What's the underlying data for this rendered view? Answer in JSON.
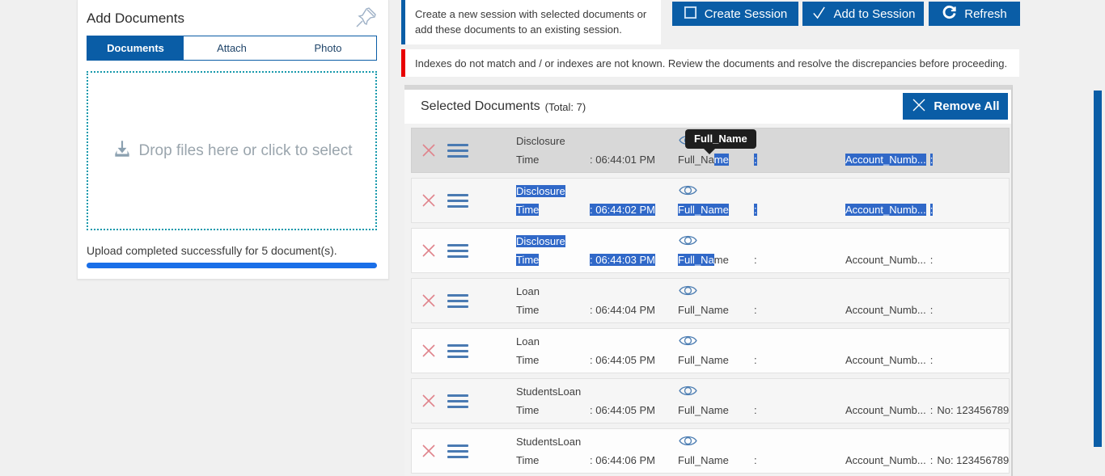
{
  "add_documents": {
    "title": "Add Documents",
    "tabs": [
      {
        "label": "Documents",
        "active": true
      },
      {
        "label": "Attach",
        "active": false
      },
      {
        "label": "Photo",
        "active": false
      }
    ],
    "dropzone_text": "Drop files here or click to select",
    "upload_status": "Upload completed successfully for 5 document(s).",
    "progress_percent": 100
  },
  "banners": {
    "info": "Create a new session with selected documents or add these documents to an existing session.",
    "warning": "Indexes do not match and / or indexes are not known. Review the documents and resolve the discrepancies before proceeding."
  },
  "toolbar": {
    "create_session": "Create Session",
    "add_to_session": "Add to Session",
    "refresh": "Refresh"
  },
  "selected_documents": {
    "title": "Selected Documents",
    "total": "(Total: 7)",
    "remove_all": "Remove All",
    "tooltip": "Full_Name",
    "rows": [
      {
        "bg": "hover",
        "tooltip": true,
        "type": [
          {
            "t": "Disclosure",
            "s": false
          }
        ],
        "time_label": [
          {
            "t": "Time",
            "s": false
          }
        ],
        "time_value": [
          {
            "t": ": 06:44:01 PM",
            "s": false
          }
        ],
        "name": [
          {
            "t": "Full_Na",
            "s": false
          },
          {
            "t": "me",
            "s": true
          }
        ],
        "name_colon": [
          {
            "t": ":",
            "s": true
          }
        ],
        "account_label": [
          {
            "t": "Account_Numb...",
            "s": true
          }
        ],
        "account_colon": [
          {
            "t": ":",
            "s": true
          }
        ],
        "account_value": []
      },
      {
        "bg": "alt",
        "tooltip": false,
        "type": [
          {
            "t": "Disclosure",
            "s": true
          }
        ],
        "time_label": [
          {
            "t": "Time",
            "s": true
          }
        ],
        "time_value": [
          {
            "t": ": 06:44:02 PM",
            "s": true
          }
        ],
        "name": [
          {
            "t": "Full_Name",
            "s": true
          }
        ],
        "name_colon": [
          {
            "t": ":",
            "s": true
          }
        ],
        "account_label": [
          {
            "t": "Account_Numb...",
            "s": true
          }
        ],
        "account_colon": [
          {
            "t": ":",
            "s": true
          }
        ],
        "account_value": []
      },
      {
        "bg": "white",
        "tooltip": false,
        "type": [
          {
            "t": "Disclosure",
            "s": true
          }
        ],
        "time_label": [
          {
            "t": "Time",
            "s": true
          }
        ],
        "time_value": [
          {
            "t": ": 06:44:03 PM",
            "s": true
          }
        ],
        "name": [
          {
            "t": "Full_Na",
            "s": true
          },
          {
            "t": "me",
            "s": false
          }
        ],
        "name_colon": [
          {
            "t": ":",
            "s": false
          }
        ],
        "account_label": [
          {
            "t": "Account_Numb...",
            "s": false
          }
        ],
        "account_colon": [
          {
            "t": ":",
            "s": false
          }
        ],
        "account_value": []
      },
      {
        "bg": "alt",
        "tooltip": false,
        "type": [
          {
            "t": "Loan",
            "s": false
          }
        ],
        "time_label": [
          {
            "t": "Time",
            "s": false
          }
        ],
        "time_value": [
          {
            "t": ": 06:44:04 PM",
            "s": false
          }
        ],
        "name": [
          {
            "t": "Full_Name",
            "s": false
          }
        ],
        "name_colon": [
          {
            "t": ":",
            "s": false
          }
        ],
        "account_label": [
          {
            "t": "Account_Numb...",
            "s": false
          }
        ],
        "account_colon": [
          {
            "t": ":",
            "s": false
          }
        ],
        "account_value": []
      },
      {
        "bg": "white",
        "tooltip": false,
        "type": [
          {
            "t": "Loan",
            "s": false
          }
        ],
        "time_label": [
          {
            "t": "Time",
            "s": false
          }
        ],
        "time_value": [
          {
            "t": ": 06:44:05 PM",
            "s": false
          }
        ],
        "name": [
          {
            "t": "Full_Name",
            "s": false
          }
        ],
        "name_colon": [
          {
            "t": ":",
            "s": false
          }
        ],
        "account_label": [
          {
            "t": "Account_Numb...",
            "s": false
          }
        ],
        "account_colon": [
          {
            "t": ":",
            "s": false
          }
        ],
        "account_value": []
      },
      {
        "bg": "alt",
        "tooltip": false,
        "type": [
          {
            "t": "StudentsLoan",
            "s": false
          }
        ],
        "time_label": [
          {
            "t": "Time",
            "s": false
          }
        ],
        "time_value": [
          {
            "t": ": 06:44:05 PM",
            "s": false
          }
        ],
        "name": [
          {
            "t": "Full_Name",
            "s": false
          }
        ],
        "name_colon": [
          {
            "t": ":",
            "s": false
          }
        ],
        "account_label": [
          {
            "t": "Account_Numb...",
            "s": false
          }
        ],
        "account_colon": [
          {
            "t": ":",
            "s": false
          }
        ],
        "account_value": [
          {
            "t": "No: 123456789",
            "s": false
          }
        ]
      },
      {
        "bg": "white",
        "tooltip": false,
        "type": [
          {
            "t": "StudentsLoan",
            "s": false
          }
        ],
        "time_label": [
          {
            "t": "Time",
            "s": false
          }
        ],
        "time_value": [
          {
            "t": ": 06:44:06 PM",
            "s": false
          }
        ],
        "name": [
          {
            "t": "Full_Name",
            "s": false
          }
        ],
        "name_colon": [
          {
            "t": ":",
            "s": false
          }
        ],
        "account_label": [
          {
            "t": "Account_Numb...",
            "s": false
          }
        ],
        "account_colon": [
          {
            "t": ":",
            "s": false
          }
        ],
        "account_value": [
          {
            "t": "No: 123456789",
            "s": false
          }
        ]
      }
    ]
  },
  "colors": {
    "brand_blue": "#0a5da6",
    "progress_blue": "#1a6fe8",
    "selection_blue": "#3068c8",
    "dropzone_teal": "#1899ac",
    "warning_red": "#e80000",
    "row_hover_gray": "#d8d8d8"
  }
}
